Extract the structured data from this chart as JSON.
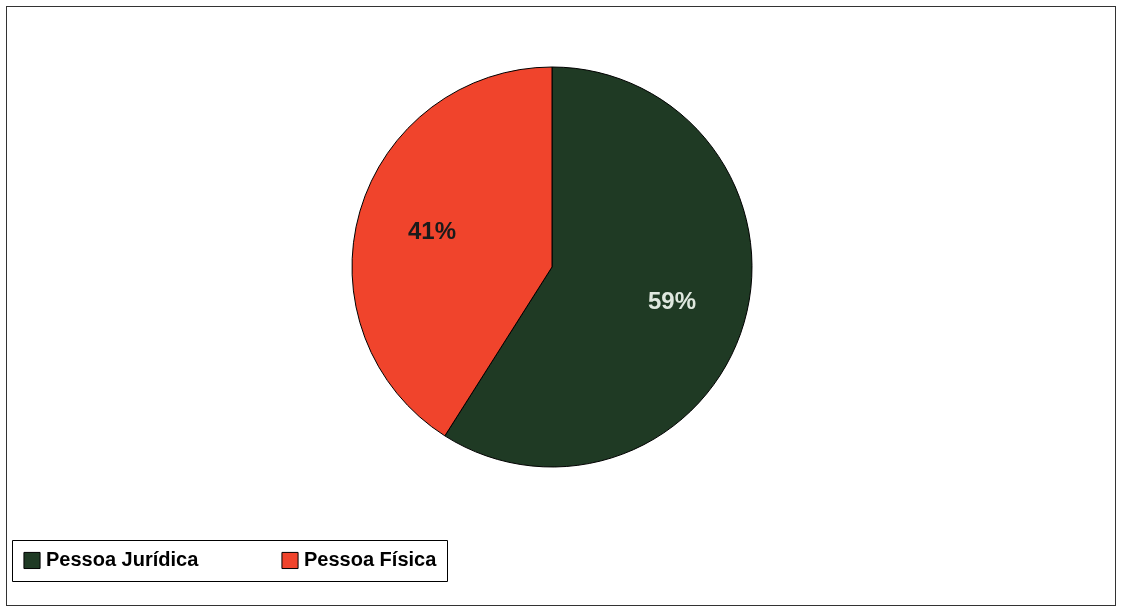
{
  "chart_data": {
    "type": "pie",
    "categories": [
      "Pessoa Jurídica",
      "Pessoa Física"
    ],
    "values": [
      59,
      41
    ],
    "colors": [
      "#1f3a24",
      "#f0442c"
    ],
    "value_labels": [
      "59%",
      "41%"
    ],
    "legend": "bottom"
  }
}
